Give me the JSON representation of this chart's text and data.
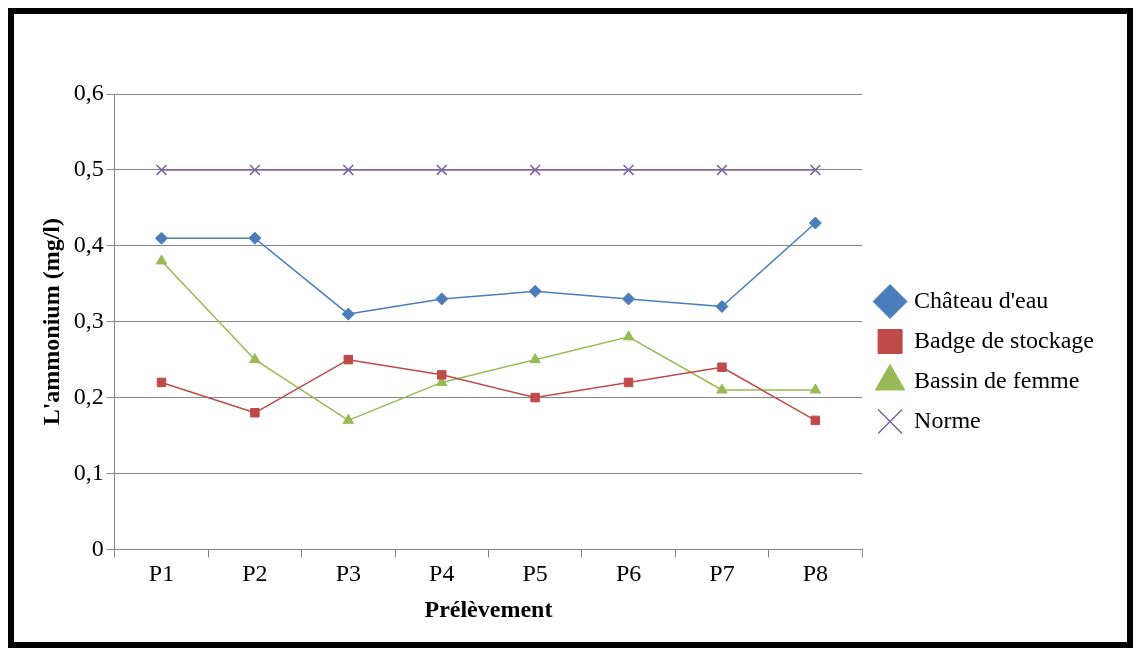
{
  "chart_data": {
    "type": "line",
    "xlabel": "Prélèvement",
    "ylabel": "L'ammonium (mg/l)",
    "categories": [
      "P1",
      "P2",
      "P3",
      "P4",
      "P5",
      "P6",
      "P7",
      "P8"
    ],
    "series": [
      {
        "name": "Château d'eau",
        "color": "#4a7ebb",
        "marker": "diamond",
        "values": [
          0.41,
          0.41,
          0.31,
          0.33,
          0.34,
          0.33,
          0.32,
          0.43
        ]
      },
      {
        "name": "Badge de stockage",
        "color": "#be4b48",
        "marker": "square",
        "values": [
          0.22,
          0.18,
          0.25,
          0.23,
          0.2,
          0.22,
          0.24,
          0.17
        ]
      },
      {
        "name": "Bassin de femme",
        "color": "#98b954",
        "marker": "triangle",
        "values": [
          0.38,
          0.25,
          0.17,
          0.22,
          0.25,
          0.28,
          0.21,
          0.21
        ]
      },
      {
        "name": "Norme",
        "color": "#7d60a0",
        "marker": "cross",
        "values": [
          0.5,
          0.5,
          0.5,
          0.5,
          0.5,
          0.5,
          0.5,
          0.5
        ]
      }
    ],
    "ylim": [
      0,
      0.6
    ],
    "yticks": [
      {
        "value": 0,
        "label": "0"
      },
      {
        "value": 0.1,
        "label": "0,1"
      },
      {
        "value": 0.2,
        "label": "0,2"
      },
      {
        "value": 0.3,
        "label": "0,3"
      },
      {
        "value": 0.4,
        "label": "0,4"
      },
      {
        "value": 0.5,
        "label": "0,5"
      },
      {
        "value": 0.6,
        "label": "0,6"
      }
    ],
    "grid": "y",
    "legend": "right",
    "line_style": "solid"
  }
}
